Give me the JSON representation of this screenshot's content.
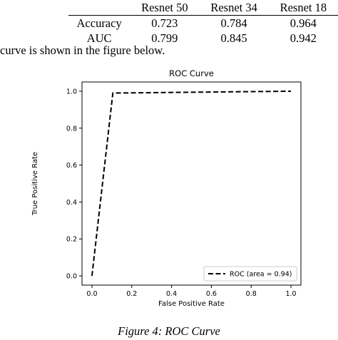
{
  "results_table": {
    "headers": [
      "",
      "Resnet 50",
      "Resnet 34",
      "Resnet 18"
    ],
    "rows": [
      {
        "label": "Accuracy",
        "values": [
          "0.723",
          "0.784",
          "0.964"
        ]
      },
      {
        "label": "AUC",
        "values": [
          "0.799",
          "0.845",
          "0.942"
        ]
      }
    ]
  },
  "body_text": "curve is shown in the figure below.",
  "figure_caption": "Figure 4: ROC Curve",
  "chart_data": {
    "type": "line",
    "title": "ROC Curve",
    "xlabel": "False Positive Rate",
    "ylabel": "True Positive Rate",
    "xlim": [
      -0.05,
      1.05
    ],
    "ylim": [
      -0.05,
      1.05
    ],
    "xticks": [
      "0.0",
      "0.2",
      "0.4",
      "0.6",
      "0.8",
      "1.0"
    ],
    "yticks": [
      "0.0",
      "0.2",
      "0.4",
      "0.6",
      "0.8",
      "1.0"
    ],
    "grid": false,
    "legend_position": "lower-right",
    "series": [
      {
        "name": "ROC (area = 0.94)",
        "style": "dashed",
        "color": "#000000",
        "x": [
          0.0,
          0.105,
          1.0
        ],
        "y": [
          0.0,
          0.99,
          1.0
        ]
      }
    ]
  }
}
